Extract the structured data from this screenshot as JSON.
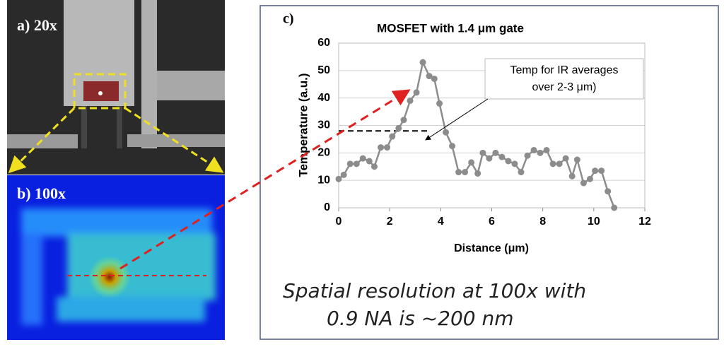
{
  "panels": {
    "a": "a) 20x",
    "b": "b) 100x",
    "c": "c)"
  },
  "chart_data": {
    "type": "line",
    "title": "MOSFET with 1.4 μm gate",
    "x_label": "Distance (μm)",
    "y_label": "Temperature (a.u.)",
    "x": [
      0,
      0.2,
      0.45,
      0.7,
      0.95,
      1.2,
      1.4,
      1.65,
      1.9,
      2.1,
      2.35,
      2.55,
      2.8,
      3.05,
      3.3,
      3.55,
      3.75,
      3.95,
      4.2,
      4.45,
      4.7,
      4.95,
      5.2,
      5.45,
      5.65,
      5.9,
      6.15,
      6.4,
      6.65,
      6.9,
      7.15,
      7.4,
      7.65,
      7.9,
      8.15,
      8.4,
      8.65,
      8.9,
      9.15,
      9.35,
      9.6,
      9.85,
      10.05,
      10.3,
      10.55,
      10.8
    ],
    "values": [
      10.5,
      12,
      16,
      16,
      18,
      17,
      15,
      22,
      22,
      26,
      29,
      32,
      39,
      42,
      53,
      48,
      47,
      38,
      27.5,
      22.5,
      13,
      13,
      16.5,
      12.5,
      20,
      18,
      20,
      18.5,
      17,
      16,
      13,
      19,
      21,
      20,
      21,
      16,
      16,
      18,
      11.5,
      17.5,
      9,
      10.5,
      13.5,
      13.5,
      6,
      0
    ],
    "color": "#8c8c8c",
    "xlim": [
      0,
      12
    ],
    "xticks": [
      0,
      2,
      4,
      6,
      8,
      10,
      12
    ],
    "ylim": [
      0,
      60
    ],
    "yticks": [
      0,
      10,
      20,
      30,
      40,
      50,
      60
    ],
    "grid": true,
    "reference_value": 28,
    "annotation": [
      "Temp for IR averages",
      "over 2-3 μm)"
    ]
  },
  "caption": [
    "Spatial resolution at 100x with",
    "0.9 NA is ~200 nm"
  ]
}
